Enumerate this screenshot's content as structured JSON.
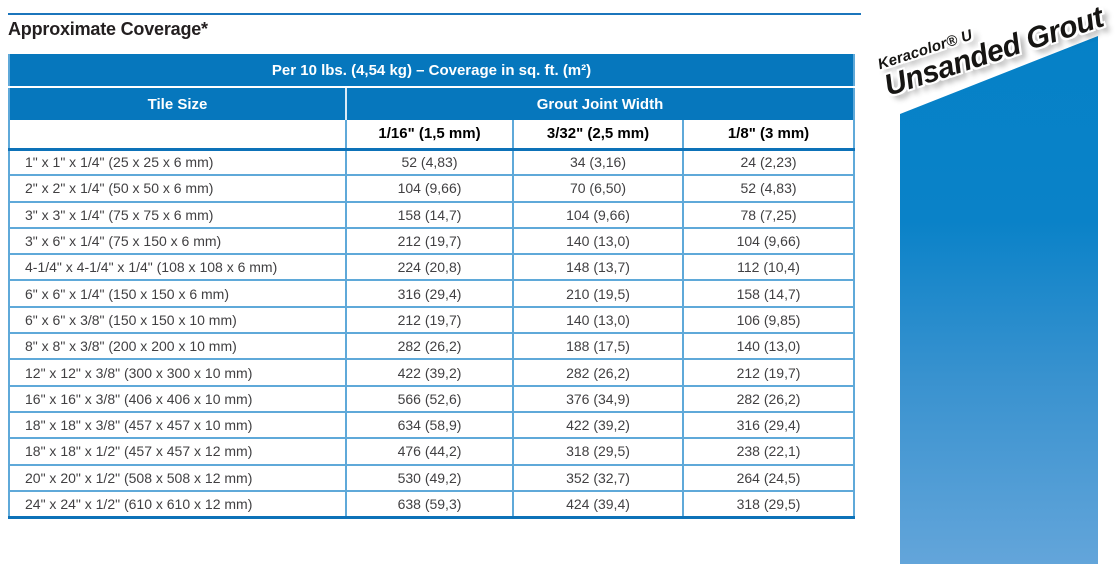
{
  "page": {
    "title": "Approximate Coverage*"
  },
  "table": {
    "header": "Per 10 lbs. (4,54 kg) – Coverage in sq. ft. (m²)",
    "col_group_left": "Tile Size",
    "col_group_right": "Grout Joint Width",
    "sub_headers": [
      "1/16\" (1,5 mm)",
      "3/32\" (2,5 mm)",
      "1/8\" (3 mm)"
    ],
    "rows": [
      {
        "tile_size": "1\" x 1\" x 1/4\" (25 x 25 x 6 mm)",
        "values": [
          "52 (4,83)",
          "34 (3,16)",
          "24 (2,23)"
        ]
      },
      {
        "tile_size": "2\" x 2\" x 1/4\" (50 x 50 x 6 mm)",
        "values": [
          "104 (9,66)",
          "70 (6,50)",
          "52 (4,83)"
        ]
      },
      {
        "tile_size": "3\" x 3\" x 1/4\" (75 x 75 x 6 mm)",
        "values": [
          "158 (14,7)",
          "104 (9,66)",
          "78 (7,25)"
        ]
      },
      {
        "tile_size": "3\" x 6\" x 1/4\" (75 x 150 x 6 mm)",
        "values": [
          "212 (19,7)",
          "140 (13,0)",
          "104 (9,66)"
        ]
      },
      {
        "tile_size": "4-1/4\" x 4-1/4\" x 1/4\" (108 x 108 x 6 mm)",
        "values": [
          "224 (20,8)",
          "148 (13,7)",
          "112 (10,4)"
        ]
      },
      {
        "tile_size": "6\" x 6\" x 1/4\" (150 x 150 x 6 mm)",
        "values": [
          "316 (29,4)",
          "210 (19,5)",
          "158 (14,7)"
        ]
      },
      {
        "tile_size": "6\" x 6\" x 3/8\" (150 x 150 x 10 mm)",
        "values": [
          "212 (19,7)",
          "140 (13,0)",
          "106 (9,85)"
        ]
      },
      {
        "tile_size": "8\" x 8\" x 3/8\" (200 x 200 x 10 mm)",
        "values": [
          "282 (26,2)",
          "188 (17,5)",
          "140 (13,0)"
        ]
      },
      {
        "tile_size": "12\" x 12\" x 3/8\" (300 x 300 x 10 mm)",
        "values": [
          "422 (39,2)",
          "282 (26,2)",
          "212 (19,7)"
        ]
      },
      {
        "tile_size": "16\" x 16\" x 3/8\" (406 x 406 x 10 mm)",
        "values": [
          "566 (52,6)",
          "376 (34,9)",
          "282 (26,2)"
        ]
      },
      {
        "tile_size": "18\" x 18\" x 3/8\" (457 x 457 x 10 mm)",
        "values": [
          "634 (58,9)",
          "422 (39,2)",
          "316 (29,4)"
        ]
      },
      {
        "tile_size": "18\" x 18\" x 1/2\" (457 x 457 x 12 mm)",
        "values": [
          "476 (44,2)",
          "318 (29,5)",
          "238 (22,1)"
        ]
      },
      {
        "tile_size": "20\" x 20\" x 1/2\" (508 x 508 x 12 mm)",
        "values": [
          "530 (49,2)",
          "352 (32,7)",
          "264 (24,5)"
        ]
      },
      {
        "tile_size": "24\" x 24\" x 1/2\" (610 x 610 x 12 mm)",
        "values": [
          "638 (59,3)",
          "424 (39,4)",
          "318 (29,5)"
        ]
      }
    ]
  },
  "brand": {
    "line1": "Keracolor® U",
    "line2": "Unsanded Grout"
  },
  "colors": {
    "header_blue": "#0677bd",
    "light_border_blue": "#5fa9d9",
    "dark_border_blue": "#0d72b8",
    "panel_gradient_top": "#0581c7",
    "panel_gradient_bottom": "#63a5da",
    "body_text": "#414042"
  }
}
